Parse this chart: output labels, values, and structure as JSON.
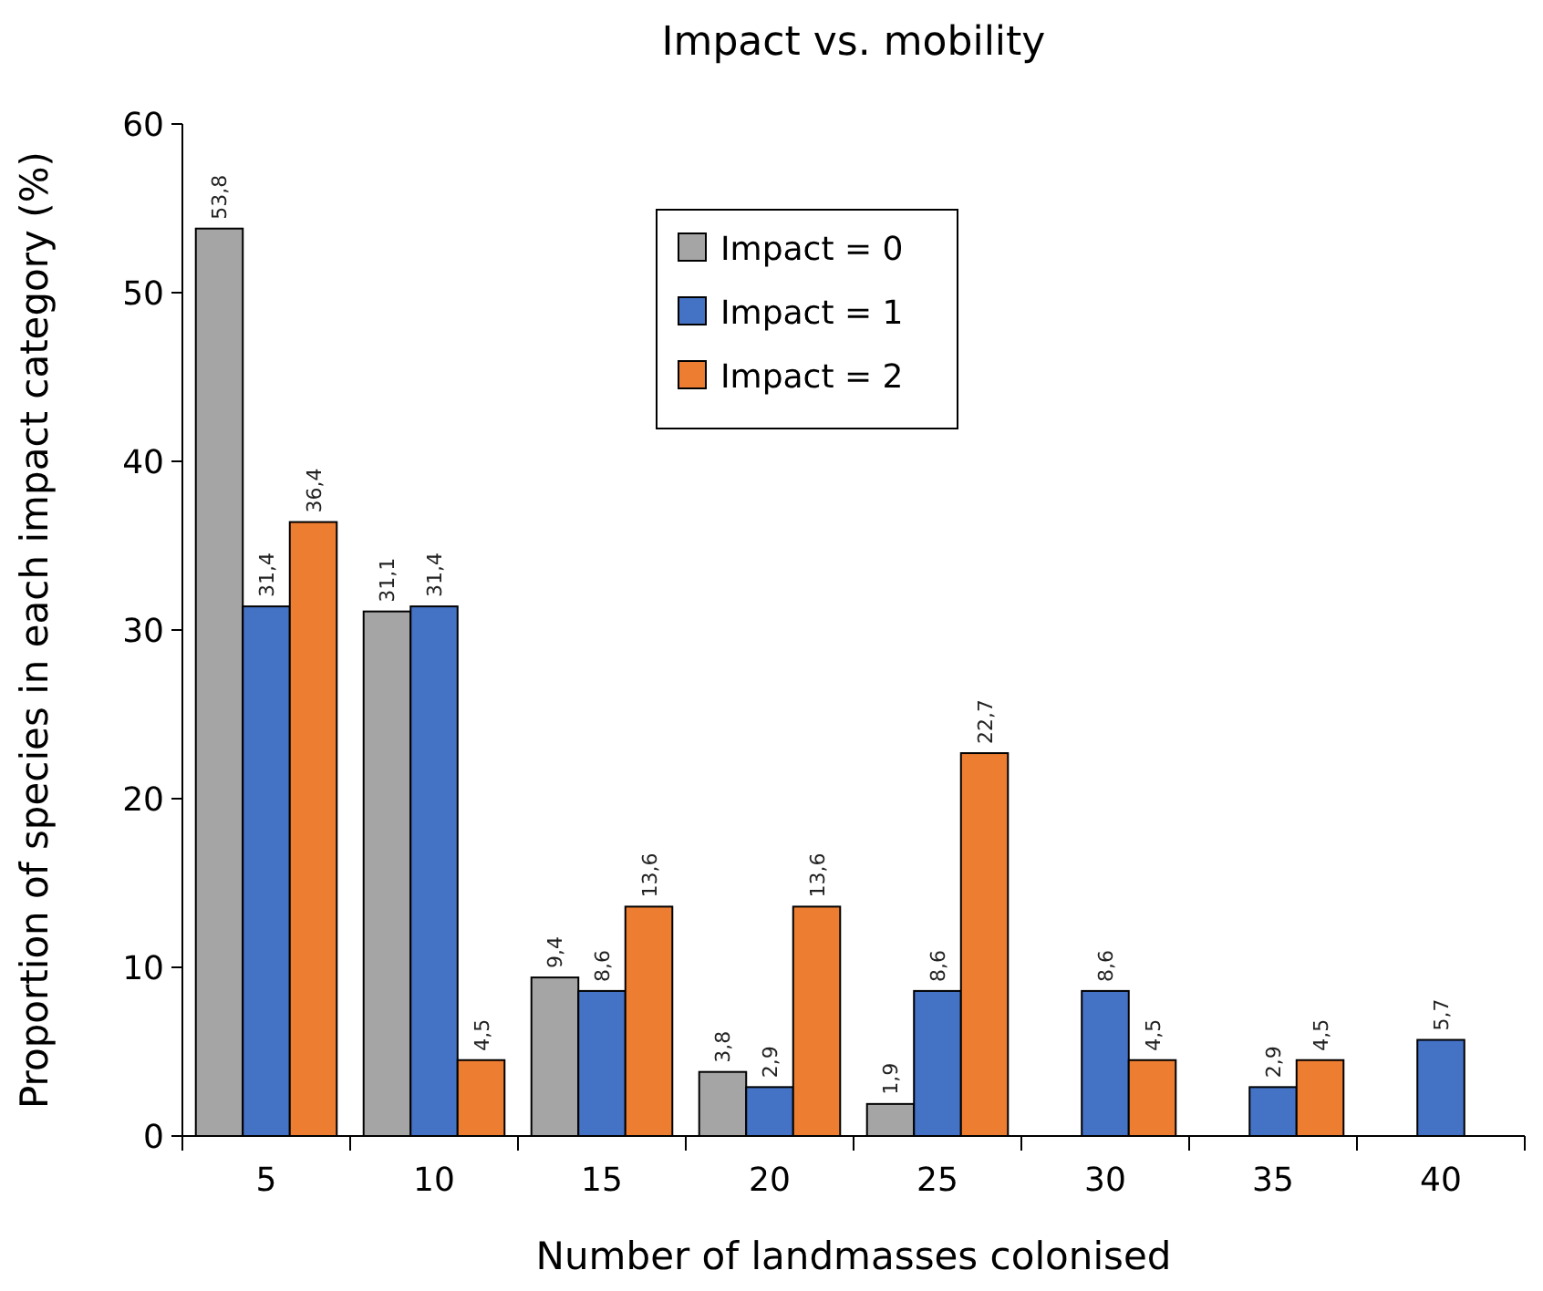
{
  "chart_data": {
    "type": "bar",
    "title": "Impact vs. mobility",
    "xlabel": "Number of landmasses colonised",
    "ylabel": "Proportion of species in each impact category (%)",
    "categories": [
      "5",
      "10",
      "15",
      "20",
      "25",
      "30",
      "35",
      "40"
    ],
    "series": [
      {
        "name": "Impact = 0",
        "color": "#a5a5a5",
        "values": [
          53.8,
          31.1,
          9.4,
          3.8,
          1.9,
          null,
          null,
          null
        ],
        "value_labels": [
          "53,8",
          "31,1",
          "9,4",
          "3,8",
          "1,9",
          null,
          null,
          null
        ]
      },
      {
        "name": "Impact = 1",
        "color": "#4472c4",
        "values": [
          31.4,
          31.4,
          8.6,
          2.9,
          8.6,
          8.6,
          2.9,
          5.7
        ],
        "value_labels": [
          "31,4",
          "31,4",
          "8,6",
          "2,9",
          "8,6",
          "8,6",
          "2,9",
          "5,7"
        ]
      },
      {
        "name": "Impact = 2",
        "color": "#ed7d31",
        "values": [
          36.4,
          4.5,
          13.6,
          13.6,
          22.7,
          4.5,
          4.5,
          null
        ],
        "value_labels": [
          "36,4",
          "4,5",
          "13,6",
          "13,6",
          "22,7",
          "4,5",
          "4,5",
          null
        ]
      }
    ],
    "ylim": [
      0,
      60
    ],
    "yticks": [
      0,
      10,
      20,
      30,
      40,
      50,
      60
    ],
    "grid": false,
    "legend": "top"
  }
}
